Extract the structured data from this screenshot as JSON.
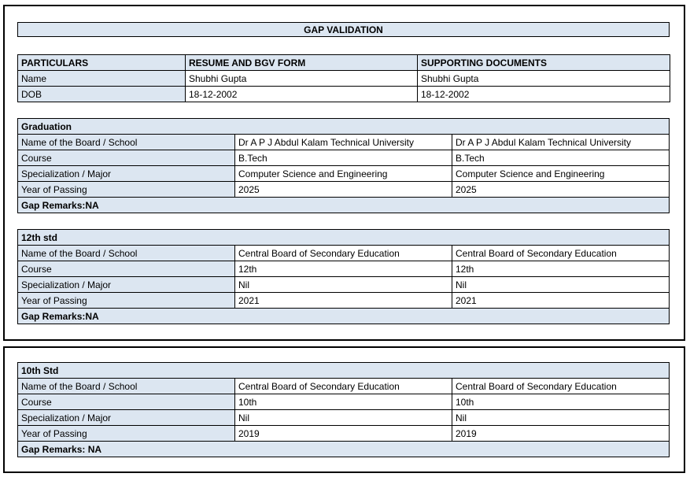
{
  "page": {
    "title": "GAP VALIDATION"
  },
  "colors": {
    "highlight_bg": "#dce6f1",
    "border": "#000000",
    "text": "#000000",
    "background": "#ffffff"
  },
  "particulars": {
    "headers": {
      "col1": "PARTICULARS",
      "col2": "RESUME AND BGV FORM",
      "col3": "SUPPORTING DOCUMENTS"
    },
    "rows": [
      {
        "label": "Name",
        "resume": "Shubhi Gupta",
        "supporting": "Shubhi Gupta"
      },
      {
        "label": "DOB",
        "resume": "18-12-2002",
        "supporting": "18-12-2002"
      }
    ]
  },
  "sections": [
    {
      "title": "Graduation",
      "rows": [
        {
          "label": "Name of the Board / School",
          "resume": "Dr A P J Abdul Kalam Technical University",
          "supporting": "Dr A P J Abdul Kalam Technical University"
        },
        {
          "label": "Course",
          "resume": "B.Tech",
          "supporting": "B.Tech"
        },
        {
          "label": "Specialization / Major",
          "resume": "Computer Science and Engineering",
          "supporting": "Computer Science and Engineering"
        },
        {
          "label": "Year of Passing",
          "resume": "2025",
          "supporting": "2025"
        }
      ],
      "gap_remarks": "Gap Remarks:NA"
    },
    {
      "title": "12th std",
      "rows": [
        {
          "label": "Name of the Board / School",
          "resume": "Central Board of Secondary Education",
          "supporting": "Central Board of Secondary Education"
        },
        {
          "label": "Course",
          "resume": "12th",
          "supporting": "12th"
        },
        {
          "label": "Specialization / Major",
          "resume": "Nil",
          "supporting": "Nil"
        },
        {
          "label": "Year of Passing",
          "resume": "2021",
          "supporting": "2021"
        }
      ],
      "gap_remarks": "Gap Remarks:NA"
    },
    {
      "title": "10th Std",
      "rows": [
        {
          "label": "Name of the Board / School",
          "resume": "Central Board of Secondary Education",
          "supporting": "Central Board of Secondary Education"
        },
        {
          "label": "Course",
          "resume": "10th",
          "supporting": "10th"
        },
        {
          "label": "Specialization / Major",
          "resume": "Nil",
          "supporting": "Nil"
        },
        {
          "label": "Year of Passing",
          "resume": "2019",
          "supporting": "2019"
        }
      ],
      "gap_remarks": "Gap Remarks: NA"
    }
  ]
}
